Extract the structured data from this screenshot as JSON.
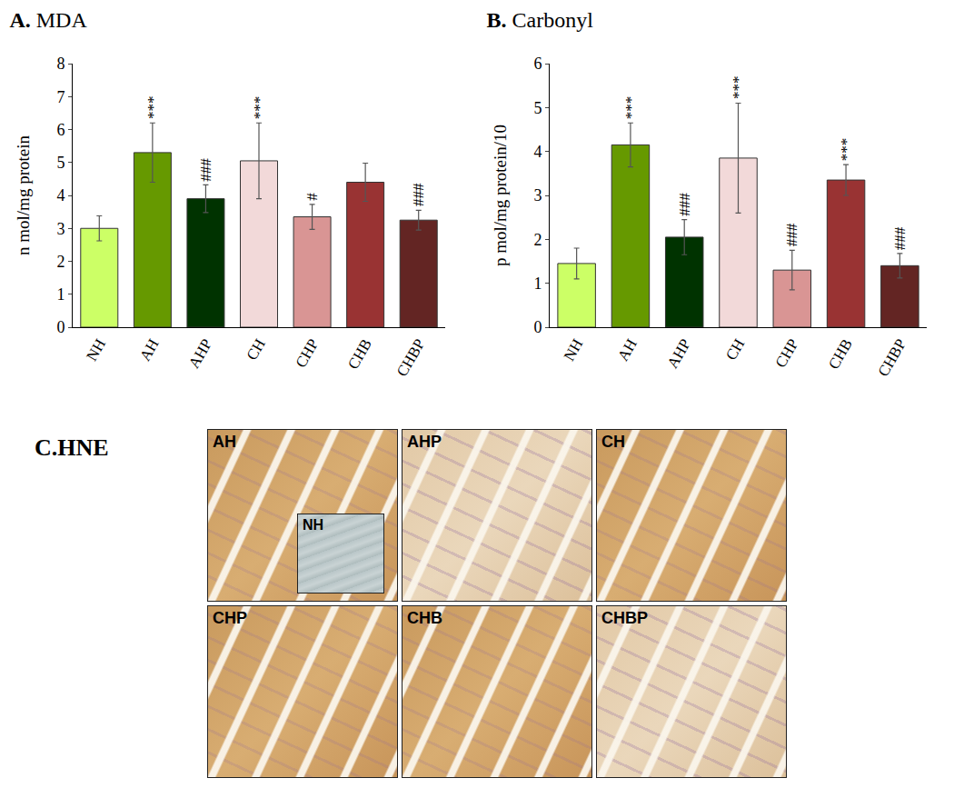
{
  "chart_data": [
    {
      "type": "bar",
      "panel": "A.",
      "title": "MDA",
      "y_label": "n mol/mg protein",
      "categories": [
        "NH",
        "AH",
        "AHP",
        "CH",
        "CHP",
        "CHB",
        "CHBP"
      ],
      "values": [
        3.0,
        5.3,
        3.9,
        5.05,
        3.35,
        4.4,
        3.25
      ],
      "errors": [
        0.38,
        0.9,
        0.42,
        1.15,
        0.38,
        0.58,
        0.3
      ],
      "significance": [
        null,
        "***",
        "###",
        "***",
        "#",
        null,
        "###"
      ],
      "colors": [
        "#ccff66",
        "#669900",
        "#003300",
        "#f2d9d9",
        "#d99594",
        "#993333",
        "#632523"
      ],
      "ylim": [
        0,
        8
      ],
      "yticks": [
        0,
        1,
        2,
        3,
        4,
        5,
        6,
        7,
        8
      ],
      "grid": false
    },
    {
      "type": "bar",
      "panel": "B.",
      "title": "Carbonyl",
      "y_label": "p mol/mg protein/10",
      "categories": [
        "NH",
        "AH",
        "AHP",
        "CH",
        "CHP",
        "CHB",
        "CHBP"
      ],
      "values": [
        1.45,
        4.15,
        2.05,
        3.85,
        1.3,
        3.35,
        1.4
      ],
      "errors": [
        0.35,
        0.5,
        0.4,
        1.25,
        0.45,
        0.35,
        0.28
      ],
      "significance": [
        null,
        "***",
        "###",
        "***",
        "###",
        "***",
        "###"
      ],
      "colors": [
        "#ccff66",
        "#669900",
        "#003300",
        "#f2d9d9",
        "#d99594",
        "#993333",
        "#632523"
      ],
      "ylim": [
        0,
        6
      ],
      "yticks": [
        0,
        1,
        2,
        3,
        4,
        5,
        6
      ],
      "grid": false
    }
  ],
  "panel_c": {
    "panel": "C.",
    "title": "HNE",
    "images": [
      "AH",
      "AHP",
      "CH",
      "CHP",
      "CHB",
      "CHBP"
    ],
    "inset": "NH"
  }
}
